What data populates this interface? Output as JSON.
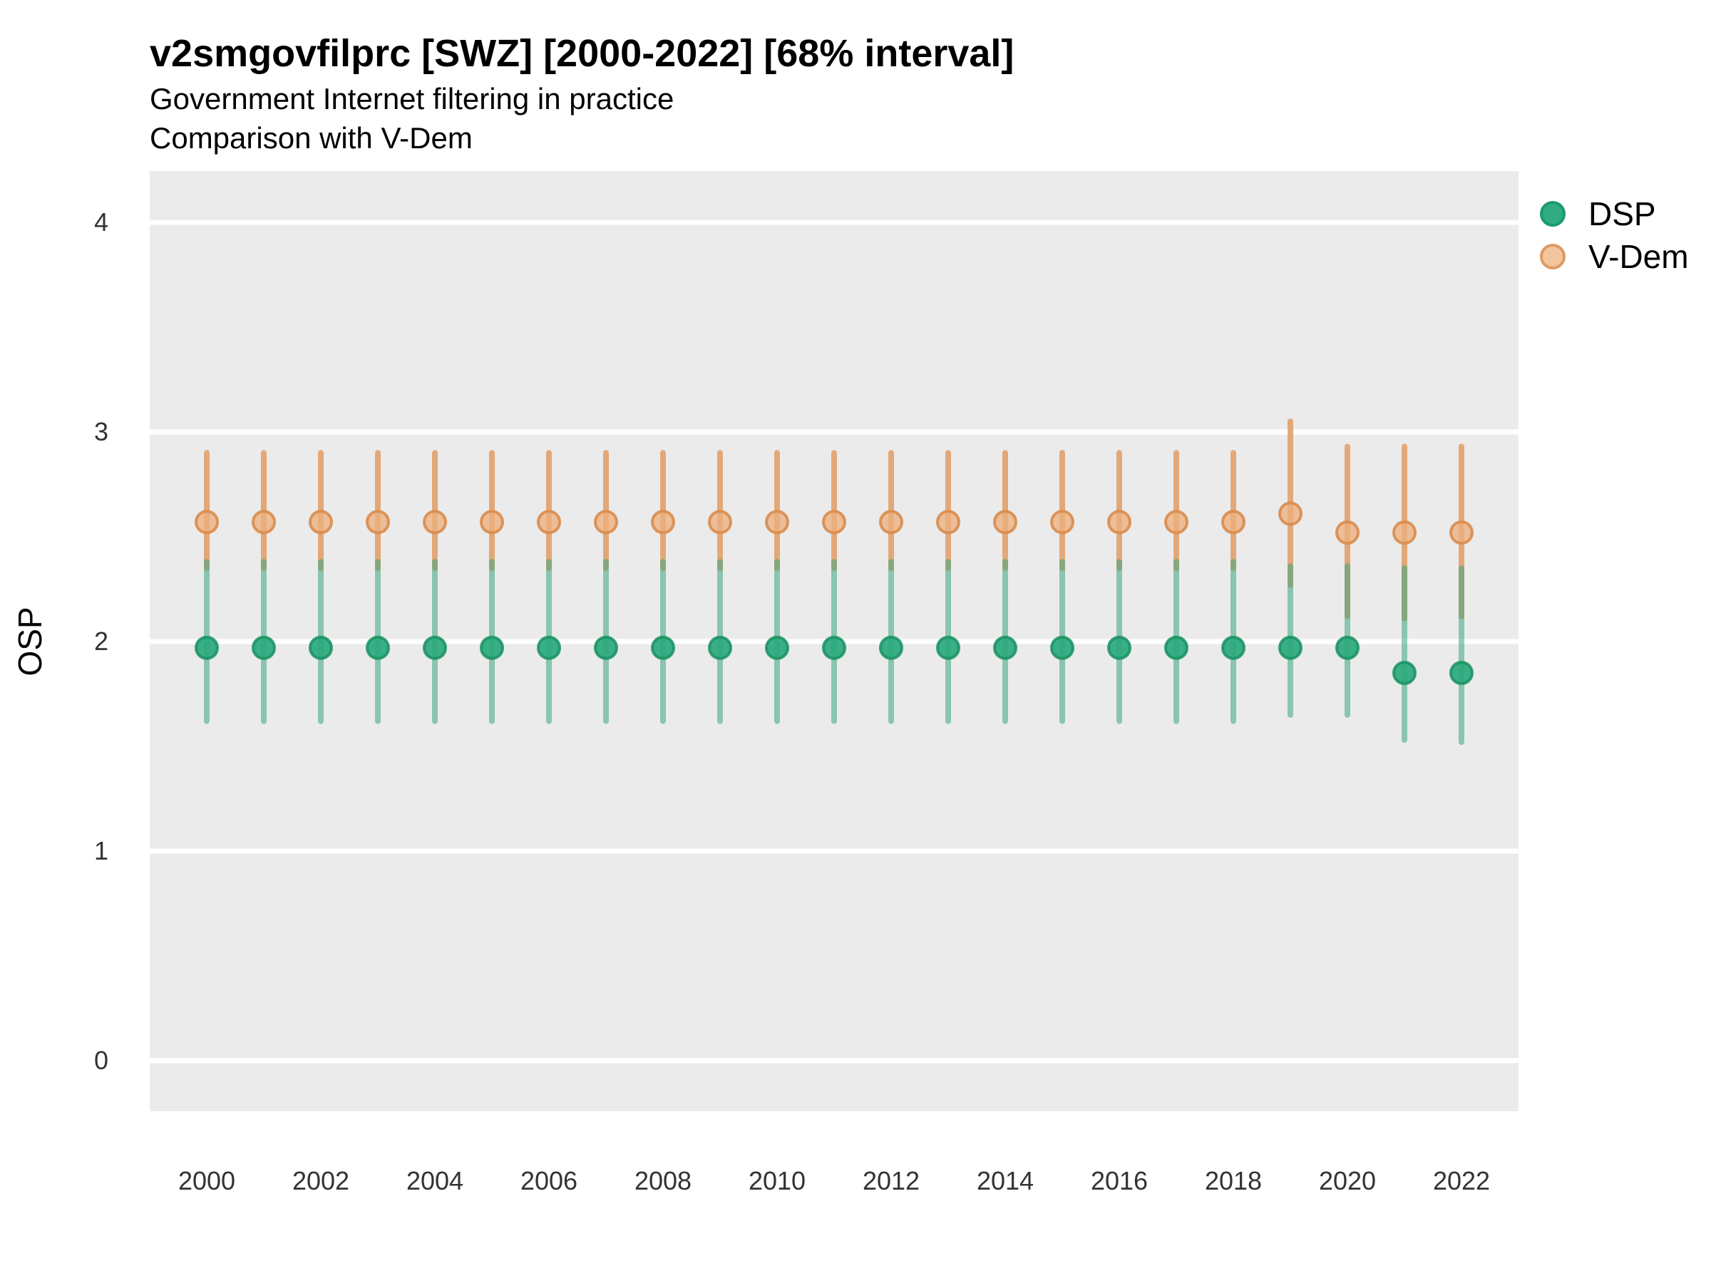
{
  "header": {
    "title": "v2smgovfilprc [SWZ] [2000-2022] [68% interval]",
    "subtitle_line1": "Government Internet filtering in practice",
    "subtitle_line2": "Comparison with V-Dem"
  },
  "axes": {
    "y_label": "OSP",
    "y_ticks": [
      "0",
      "1",
      "2",
      "3",
      "4"
    ],
    "x_ticks": [
      "2000",
      "2002",
      "2004",
      "2006",
      "2008",
      "2010",
      "2012",
      "2014",
      "2016",
      "2018",
      "2020",
      "2022"
    ]
  },
  "legend": {
    "items": [
      {
        "label": "DSP",
        "fill": "#2fac81",
        "stroke": "#1d9a6e"
      },
      {
        "label": "V-Dem",
        "fill": "#f3c59d",
        "stroke": "#dd9b64"
      }
    ]
  },
  "colors": {
    "panel_bg": "#ebebeb",
    "gridline": "#ffffff",
    "vdem_line": "#e3a878",
    "vdem_point_fill": "#ecaf7f",
    "vdem_point_stroke": "#d98c4c",
    "dsp_line": "rgba(58,166,128,0.55)",
    "dsp_point_fill": "#2aa87d",
    "dsp_point_stroke": "#17925f"
  },
  "chart_data": {
    "type": "scatter",
    "title": "v2smgovfilprc [SWZ] [2000-2022] [68% interval]",
    "subtitle": "Government Internet filtering in practice — Comparison with V-Dem",
    "xlabel": "",
    "ylabel": "OSP",
    "interval": "68%",
    "grid": "horizontal-major-only",
    "legend_position": "top-right",
    "ylim": [
      -0.24,
      4.24
    ],
    "y_ticks": [
      0,
      1,
      2,
      3,
      4
    ],
    "x": [
      2000,
      2001,
      2002,
      2003,
      2004,
      2005,
      2006,
      2007,
      2008,
      2009,
      2010,
      2011,
      2012,
      2013,
      2014,
      2015,
      2016,
      2017,
      2018,
      2019,
      2020,
      2021,
      2022
    ],
    "x_tick_labels": [
      2000,
      2002,
      2004,
      2006,
      2008,
      2010,
      2012,
      2014,
      2016,
      2018,
      2020,
      2022
    ],
    "series": [
      {
        "name": "DSP",
        "values": [
          1.97,
          1.97,
          1.97,
          1.97,
          1.97,
          1.97,
          1.97,
          1.97,
          1.97,
          1.97,
          1.97,
          1.97,
          1.97,
          1.97,
          1.97,
          1.97,
          1.97,
          1.97,
          1.97,
          1.97,
          1.97,
          1.85,
          1.85
        ],
        "lower": [
          1.62,
          1.62,
          1.62,
          1.62,
          1.62,
          1.62,
          1.62,
          1.62,
          1.62,
          1.62,
          1.62,
          1.62,
          1.62,
          1.62,
          1.62,
          1.62,
          1.62,
          1.62,
          1.62,
          1.65,
          1.65,
          1.53,
          1.52
        ],
        "upper": [
          2.38,
          2.38,
          2.38,
          2.38,
          2.38,
          2.38,
          2.38,
          2.38,
          2.38,
          2.38,
          2.38,
          2.38,
          2.38,
          2.38,
          2.38,
          2.38,
          2.38,
          2.38,
          2.38,
          2.36,
          2.36,
          2.35,
          2.35
        ]
      },
      {
        "name": "V-Dem",
        "values": [
          2.57,
          2.57,
          2.57,
          2.57,
          2.57,
          2.57,
          2.57,
          2.57,
          2.57,
          2.57,
          2.57,
          2.57,
          2.57,
          2.57,
          2.57,
          2.57,
          2.57,
          2.57,
          2.57,
          2.61,
          2.52,
          2.52,
          2.52
        ],
        "lower": [
          2.35,
          2.35,
          2.35,
          2.35,
          2.35,
          2.35,
          2.35,
          2.35,
          2.35,
          2.35,
          2.35,
          2.35,
          2.35,
          2.35,
          2.35,
          2.35,
          2.35,
          2.35,
          2.35,
          2.27,
          2.12,
          2.11,
          2.12
        ],
        "upper": [
          2.9,
          2.9,
          2.9,
          2.9,
          2.9,
          2.9,
          2.9,
          2.9,
          2.9,
          2.9,
          2.9,
          2.9,
          2.9,
          2.9,
          2.9,
          2.9,
          2.9,
          2.9,
          2.9,
          3.05,
          2.93,
          2.93,
          2.93
        ]
      }
    ]
  }
}
